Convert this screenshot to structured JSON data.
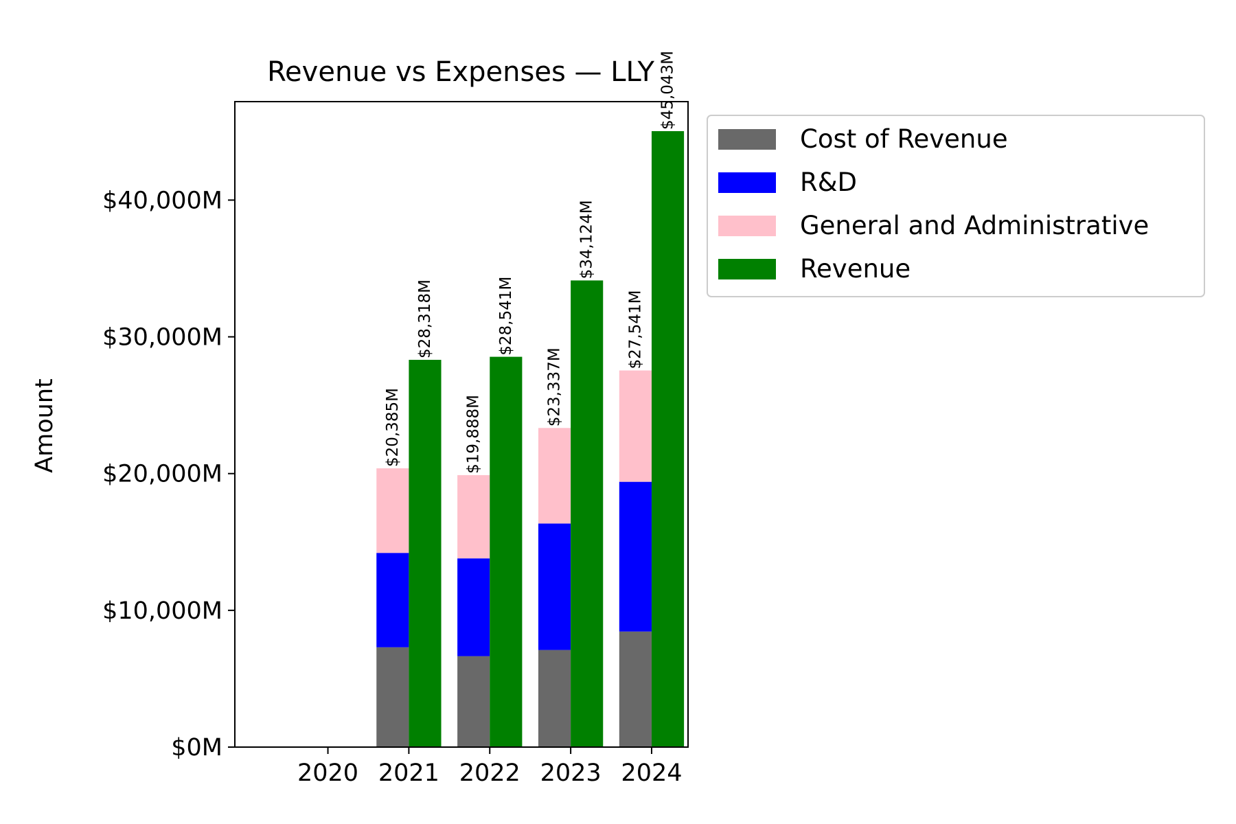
{
  "chart_data": {
    "type": "bar",
    "title": "Revenue vs Expenses — LLY",
    "xlabel": "",
    "ylabel": "Amount",
    "categories": [
      "2020",
      "2021",
      "2022",
      "2023",
      "2024"
    ],
    "ylim": [
      0,
      47200
    ],
    "yticks": [
      0,
      10000,
      20000,
      30000,
      40000
    ],
    "ytick_labels": [
      "$0M",
      "$10,000M",
      "$20,000M",
      "$30,000M",
      "$40,000M"
    ],
    "grid": false,
    "legend_position": "outside-top-right",
    "stacked_series": [
      {
        "name": "Cost of Revenue",
        "color": "#696969",
        "values": [
          null,
          7300,
          6650,
          7100,
          8450
        ]
      },
      {
        "name": "R&D",
        "color": "#0000ff",
        "values": [
          null,
          6900,
          7150,
          9250,
          10950
        ]
      },
      {
        "name": "General and Administrative",
        "color": "#ffc0cb",
        "values": [
          null,
          6185,
          6088,
          6987,
          8141
        ]
      }
    ],
    "stack_totals": [
      null,
      20385,
      19888,
      23337,
      27541
    ],
    "stack_total_labels": [
      null,
      "$20,385M",
      "$19,888M",
      "$23,337M",
      "$27,541M"
    ],
    "revenue_series": {
      "name": "Revenue",
      "color": "#008000",
      "values": [
        null,
        28318,
        28541,
        34124,
        45043
      ]
    },
    "revenue_labels": [
      null,
      "$28,318M",
      "$28,541M",
      "$34,124M",
      "$45,043M"
    ]
  }
}
